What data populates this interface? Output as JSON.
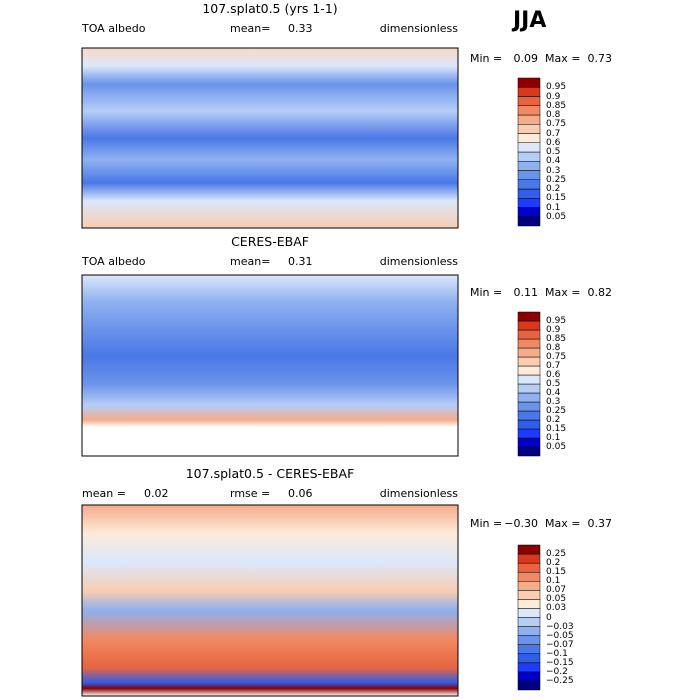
{
  "season": "JJA",
  "panels": [
    {
      "title": "107.splat0.5 (yrs 1-1)",
      "left_text": "TOA albedo",
      "mid_text": "mean=",
      "mid_value": "0.33",
      "right_text": "dimensionless",
      "min_text": "Min =",
      "min_value": "0.09",
      "max_text": "Max =",
      "max_value": "0.73",
      "levels": [
        "0.05",
        "0.1",
        "0.15",
        "0.2",
        "0.25",
        "0.3",
        "0.4",
        "0.5",
        "0.6",
        "0.7",
        "0.75",
        "0.8",
        "0.85",
        "0.9",
        "0.95"
      ],
      "colors": [
        "#000080",
        "#0000cd",
        "#1e3cff",
        "#2f5ee8",
        "#4a78e6",
        "#6a93ea",
        "#8fb1f0",
        "#b6cdf6",
        "#dbe7fb",
        "#fdebd9",
        "#f9cdb0",
        "#f5ac8a",
        "#f08a64",
        "#e86440",
        "#d8381c",
        "#8b0000"
      ]
    },
    {
      "title": "CERES-EBAF",
      "left_text": "TOA albedo",
      "mid_text": "mean=",
      "mid_value": "0.31",
      "right_text": "dimensionless",
      "min_text": "Min =",
      "min_value": "0.11",
      "max_text": "Max =",
      "max_value": "0.82",
      "levels": [
        "0.05",
        "0.1",
        "0.15",
        "0.2",
        "0.25",
        "0.3",
        "0.4",
        "0.5",
        "0.6",
        "0.7",
        "0.75",
        "0.8",
        "0.85",
        "0.9",
        "0.95"
      ],
      "colors": [
        "#000080",
        "#0000cd",
        "#1e3cff",
        "#2f5ee8",
        "#4a78e6",
        "#6a93ea",
        "#8fb1f0",
        "#b6cdf6",
        "#dbe7fb",
        "#fdebd9",
        "#f9cdb0",
        "#f5ac8a",
        "#f08a64",
        "#e86440",
        "#d8381c",
        "#8b0000"
      ]
    },
    {
      "title": "107.splat0.5 - CERES-EBAF",
      "left_text": "mean =",
      "left_value": "0.02",
      "mid_text": "rmse =",
      "mid_value": "0.06",
      "right_text": "dimensionless",
      "min_text": "Min =",
      "min_value": "−0.30",
      "max_text": "Max =",
      "max_value": "0.37",
      "levels": [
        "−0.25",
        "−0.2",
        "−0.15",
        "−0.1",
        "−0.07",
        "−0.05",
        "−0.03",
        "0",
        "0.03",
        "0.05",
        "0.07",
        "0.1",
        "0.15",
        "0.2",
        "0.25"
      ],
      "colors": [
        "#000080",
        "#0000cd",
        "#1e3cff",
        "#2f5ee8",
        "#4a78e6",
        "#6a93ea",
        "#8fb1f0",
        "#b6cdf6",
        "#dbe7fb",
        "#fdebd9",
        "#f9cdb0",
        "#f5ac8a",
        "#f08a64",
        "#e86440",
        "#d8381c",
        "#8b0000"
      ]
    }
  ]
}
